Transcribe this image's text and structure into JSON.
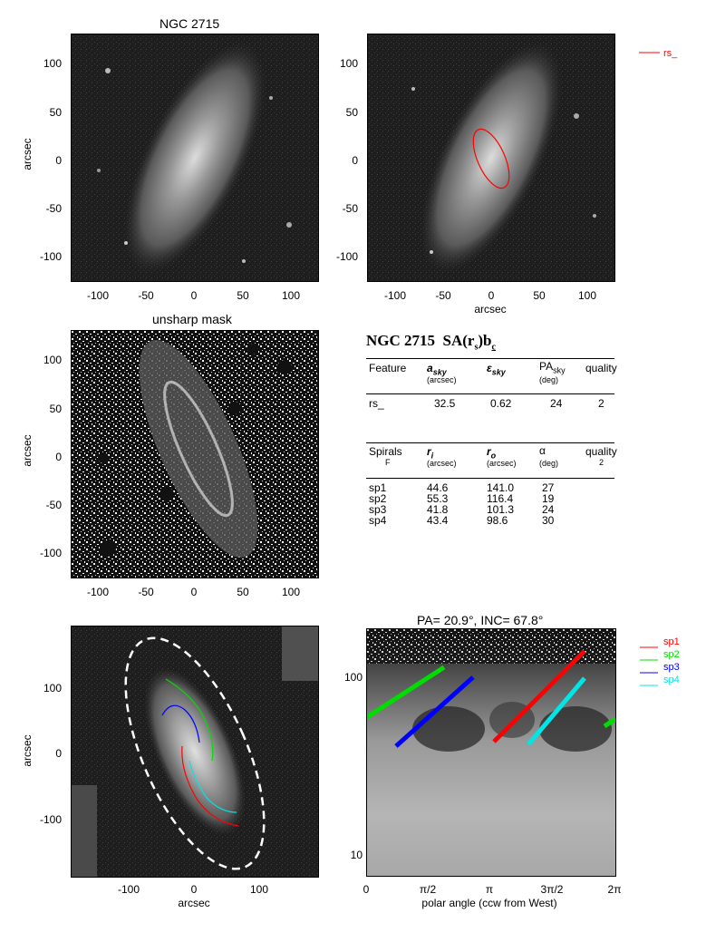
{
  "panels": {
    "top_left": {
      "title": "NGC 2715",
      "ylabel": "arcsec",
      "xticks": [
        "-100",
        "-50",
        "0",
        "50",
        "100"
      ],
      "yticks": [
        "100",
        "50",
        "0",
        "-50",
        "-100"
      ]
    },
    "top_right": {
      "xlabel": "arcsec",
      "xticks": [
        "-100",
        "-50",
        "0",
        "50",
        "100"
      ],
      "yticks": [
        "100",
        "50",
        "0",
        "-50",
        "-100"
      ],
      "legend": [
        "rs_"
      ],
      "legend_color": "#ff0000"
    },
    "mid_left": {
      "title": "unsharp mask",
      "ylabel": "arcsec",
      "xticks": [
        "-100",
        "-50",
        "0",
        "50",
        "100"
      ],
      "yticks": [
        "100",
        "50",
        "0",
        "-50",
        "-100"
      ]
    },
    "bottom_left": {
      "xlabel": "arcsec",
      "ylabel": "arcsec",
      "xticks": [
        "-100",
        "0",
        "100"
      ],
      "yticks": [
        "100",
        "0",
        "-100"
      ]
    },
    "bottom_right": {
      "title": "PA= 20.9°, INC= 67.8°",
      "xlabel": "polar angle (ccw from West)",
      "xticks": [
        "0",
        "π/2",
        "π",
        "3π/2",
        "2π"
      ],
      "yticks": [
        "100",
        "10"
      ],
      "legend": [
        {
          "label": "sp1",
          "color": "#ff0000"
        },
        {
          "label": "sp2",
          "color": "#00dd00"
        },
        {
          "label": "sp3",
          "color": "#0000ff"
        },
        {
          "label": "sp4",
          "color": "#00e5e5"
        }
      ]
    }
  },
  "table": {
    "heading_name": "NGC 2715",
    "heading_class": "SA(r",
    "heading_class_sub": "s",
    "heading_class_end": ")b",
    "heading_class_c": "c",
    "features_header": {
      "c1": "Feature",
      "c2": "a",
      "c2s": "sky",
      "c2u": "(arcsec)",
      "c3": "ε",
      "c3s": "sky",
      "c4": "PA",
      "c4s": "sky",
      "c4u": "(deg)",
      "c5": "quality"
    },
    "features": [
      {
        "name": "rs_",
        "a": "32.5",
        "eps": "0.62",
        "pa": "24",
        "q": "2"
      }
    ],
    "spirals_header": {
      "c1": "Spirals",
      "c1b": "F",
      "c2": "r",
      "c2s": "i",
      "c2u": "(arcsec)",
      "c3": "r",
      "c3s": "o",
      "c3u": "(arcsec)",
      "c4": "α",
      "c4u": "(deg)",
      "c5": "quality",
      "c5b": "2"
    },
    "spirals": [
      {
        "name": "sp1",
        "ri": "44.6",
        "ro": "141.0",
        "alpha": "27"
      },
      {
        "name": "sp2",
        "ri": "55.3",
        "ro": "116.4",
        "alpha": "19"
      },
      {
        "name": "sp3",
        "ri": "41.8",
        "ro": "101.3",
        "alpha": "24"
      },
      {
        "name": "sp4",
        "ri": "43.4",
        "ro": "98.6",
        "alpha": "30"
      }
    ]
  }
}
